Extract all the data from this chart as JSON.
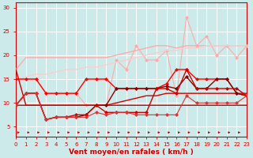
{
  "x": [
    0,
    1,
    2,
    3,
    4,
    5,
    6,
    7,
    8,
    9,
    10,
    11,
    12,
    13,
    14,
    15,
    16,
    17,
    18,
    19,
    20,
    21,
    22,
    23
  ],
  "lines": [
    {
      "y": [
        17.0,
        19.5,
        19.5,
        19.5,
        19.5,
        19.5,
        19.5,
        19.5,
        19.5,
        19.5,
        20.0,
        20.5,
        21.0,
        21.5,
        22.0,
        22.0,
        21.5,
        22.0,
        22.0,
        22.0,
        22.0,
        22.0,
        22.0,
        22.0
      ],
      "color": "#ffaaaa",
      "lw": 1.0,
      "marker": null,
      "ms": 0,
      "ls": "-"
    },
    {
      "y": [
        15.0,
        15.0,
        15.0,
        12.0,
        12.0,
        12.0,
        12.0,
        9.5,
        9.5,
        9.5,
        19.0,
        17.0,
        22.0,
        19.0,
        19.0,
        21.0,
        11.5,
        28.0,
        22.0,
        24.0,
        20.0,
        22.0,
        19.5,
        22.0
      ],
      "color": "#ffaaaa",
      "lw": 0.8,
      "marker": "D",
      "ms": 2,
      "ls": "-"
    },
    {
      "y": [
        15.0,
        15.5,
        16.0,
        16.0,
        16.5,
        17.0,
        17.0,
        17.5,
        17.5,
        18.0,
        18.5,
        19.0,
        19.5,
        20.0,
        20.5,
        21.0,
        21.0,
        21.5,
        21.5,
        22.0,
        22.0,
        22.0,
        22.0,
        22.0
      ],
      "color": "#ffcccc",
      "lw": 1.0,
      "marker": null,
      "ms": 0,
      "ls": "-"
    },
    {
      "y": [
        9.5,
        9.5,
        9.5,
        9.5,
        9.5,
        9.5,
        9.5,
        9.5,
        9.5,
        9.5,
        10.0,
        10.5,
        11.0,
        11.5,
        11.5,
        12.0,
        12.0,
        12.0,
        12.0,
        12.0,
        12.0,
        12.0,
        12.0,
        12.0
      ],
      "color": "#cc0000",
      "lw": 1.0,
      "marker": null,
      "ms": 0,
      "ls": "-"
    },
    {
      "y": [
        17.0,
        9.5,
        9.5,
        9.5,
        9.5,
        9.5,
        9.5,
        9.5,
        9.5,
        9.5,
        9.5,
        9.5,
        9.5,
        9.5,
        9.5,
        9.5,
        9.5,
        9.5,
        9.5,
        9.5,
        9.5,
        9.5,
        9.5,
        9.5
      ],
      "color": "#cc0000",
      "lw": 1.0,
      "marker": null,
      "ms": 0,
      "ls": "-"
    },
    {
      "y": [
        15.0,
        15.0,
        15.0,
        12.0,
        12.0,
        12.0,
        12.0,
        15.0,
        15.0,
        15.0,
        13.0,
        13.0,
        13.0,
        13.0,
        13.0,
        14.0,
        17.0,
        17.0,
        15.0,
        15.0,
        15.0,
        15.0,
        12.0,
        11.5
      ],
      "color": "#ff0000",
      "lw": 1.0,
      "marker": "D",
      "ms": 2,
      "ls": "-"
    },
    {
      "y": [
        9.5,
        12.0,
        12.0,
        6.5,
        7.0,
        7.0,
        7.0,
        7.5,
        9.5,
        9.5,
        13.0,
        13.0,
        13.0,
        13.0,
        13.0,
        13.5,
        13.0,
        15.5,
        13.0,
        13.0,
        15.0,
        15.0,
        12.0,
        11.5
      ],
      "color": "#880000",
      "lw": 1.0,
      "marker": "D",
      "ms": 2,
      "ls": "-"
    },
    {
      "y": [
        9.5,
        12.0,
        12.0,
        6.5,
        7.0,
        7.0,
        7.5,
        7.5,
        9.5,
        8.0,
        8.0,
        8.0,
        8.0,
        8.0,
        13.0,
        13.0,
        12.0,
        17.0,
        13.0,
        13.0,
        13.0,
        13.0,
        13.0,
        11.5
      ],
      "color": "#cc0000",
      "lw": 1.0,
      "marker": "D",
      "ms": 2,
      "ls": "-"
    },
    {
      "y": [
        9.5,
        12.0,
        12.0,
        6.5,
        7.0,
        7.0,
        7.0,
        7.0,
        8.0,
        7.5,
        8.0,
        8.0,
        7.5,
        7.5,
        7.5,
        7.5,
        7.5,
        11.5,
        10.0,
        10.0,
        10.0,
        10.0,
        10.0,
        11.5
      ],
      "color": "#dd3333",
      "lw": 0.8,
      "marker": "D",
      "ms": 2,
      "ls": "-"
    }
  ],
  "arrows": {
    "x": [
      0,
      1,
      2,
      3,
      4,
      5,
      6,
      7,
      8,
      9,
      10,
      11,
      12,
      13,
      14,
      15,
      16,
      17,
      18,
      19,
      20,
      21,
      22,
      23
    ],
    "y": 3.8,
    "color": "#cc0000"
  },
  "xlabel": "Vent moyen/en rafales ( km/h )",
  "xlabel_color": "#cc0000",
  "xlabel_fontsize": 6.5,
  "xlabel_bold": true,
  "xlim": [
    0,
    23
  ],
  "ylim": [
    3,
    31
  ],
  "yticks": [
    5,
    10,
    15,
    20,
    25,
    30
  ],
  "xticks": [
    0,
    1,
    2,
    3,
    4,
    5,
    6,
    7,
    8,
    9,
    10,
    11,
    12,
    13,
    14,
    15,
    16,
    17,
    18,
    19,
    20,
    21,
    22,
    23
  ],
  "tick_labelsize": 5,
  "bg_color": "#cdeaea",
  "grid_color": "#ffffff",
  "tick_color": "#cc0000",
  "spine_color": "#cc0000"
}
